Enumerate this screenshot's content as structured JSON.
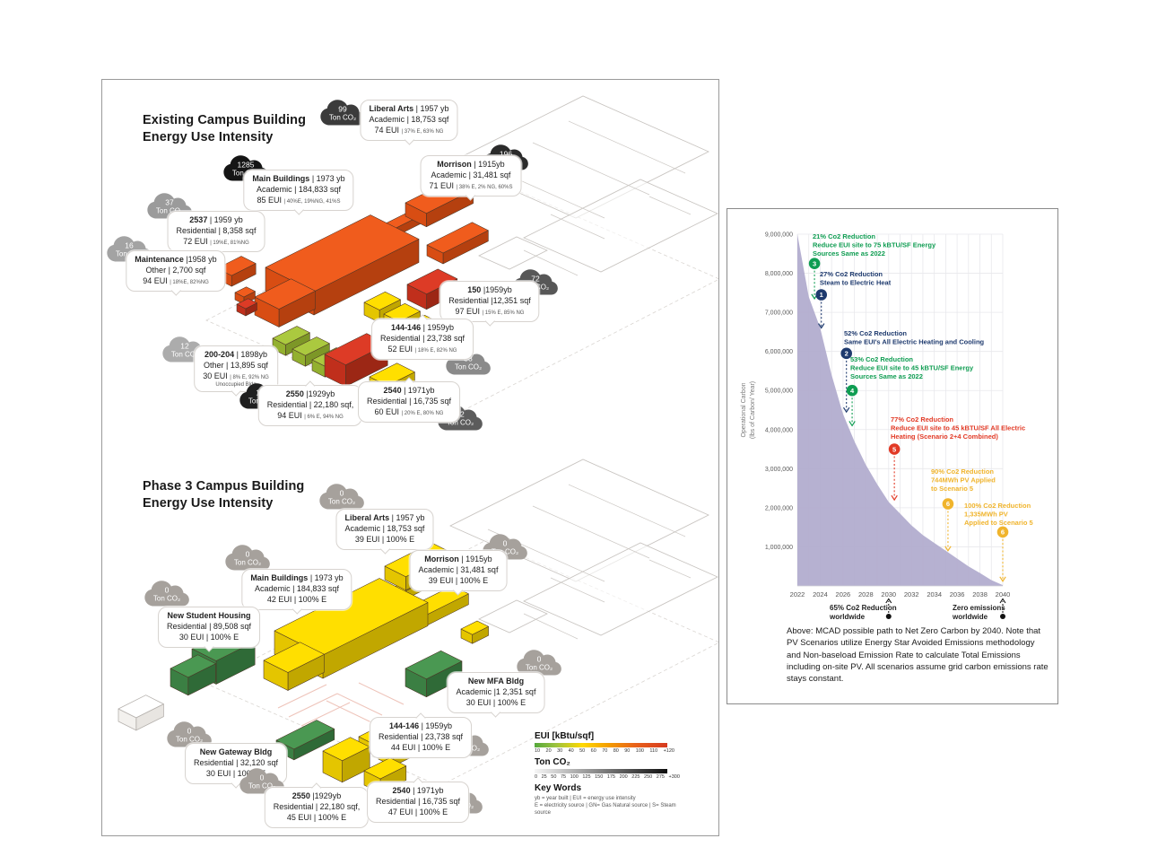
{
  "left_panel": {
    "existing": {
      "title_line1": "Existing Campus Building",
      "title_line2": "Energy Use Intensity",
      "buildings": [
        {
          "name": "Liberal Arts",
          "rest": " | 1957 yb",
          "l2": "Academic | 18,753 sqf",
          "l3": "74 EUI ",
          "l3s": "| 37% E, 63% NG",
          "cloud_value": "99",
          "cloud_label": "Ton CO₂"
        },
        {
          "name": "Main Buildings",
          "rest": " | 1973 yb",
          "l2": "Academic | 184,833 sqf",
          "l3": "85 EUI ",
          "l3s": "| 40%E, 19%NG, 41%S",
          "cloud_value": "1285",
          "cloud_label": "Ton CO₂"
        },
        {
          "name": "Morrison",
          "rest": " | 1915yb",
          "l2": "Academic | 31,481 sqf",
          "l3": "71 EUI ",
          "l3s": "| 38% E, 2% NG, 60%S",
          "cloud_value": "196",
          "cloud_label": "Ton CO₂"
        },
        {
          "name": "2537",
          "rest": " | 1959 yb",
          "l2": "Residential | 8,358 sqf",
          "l3": "72 EUI ",
          "l3s": "| 19%E, 81%NG",
          "cloud_value": "37",
          "cloud_label": "Ton CO₂"
        },
        {
          "name": "Maintenance",
          "rest": " |1958 yb",
          "l2": "Other | 2,700 sqf",
          "l3": "94 EUI ",
          "l3s": "| 18%E, 82%NG",
          "cloud_value": "16",
          "cloud_label": "Ton CO₂"
        },
        {
          "name": "150",
          "rest": " |1959yb",
          "l2": "Residential |12,351 sqf",
          "l3": "97 EUI ",
          "l3s": "| 15% E, 85% NG",
          "cloud_value": "72",
          "cloud_label": "Ton CO₂"
        },
        {
          "name": "144-146",
          "rest": " | 1959yb",
          "l2": "Residential | 23,738 sqf",
          "l3": "52 EUI ",
          "l3s": "| 18% E, 82% NG",
          "cloud_value": "38",
          "cloud_label": "Ton CO₂"
        },
        {
          "name": "200-204",
          "rest": " | 1898yb",
          "l2": "Other | 13,895 sqf",
          "l3": "30 EUI ",
          "l3s": "| 8% E, 92% NG",
          "extra": "Unoccupied Bldg",
          "cloud_value": "12",
          "cloud_label": "Ton CO₂"
        },
        {
          "name": "2550",
          "rest": " |1929yb",
          "l2": "Residential | 22,180 sqf,",
          "l3": "94 EUI ",
          "l3s": "| 6% E, 94% NG",
          "cloud_value": "117",
          "cloud_label": "Ton CO₂"
        },
        {
          "name": "2540",
          "rest": " | 1971yb",
          "l2": "Residential | 16,735 sqf",
          "l3": "60 EUI ",
          "l3s": "| 20% E, 80% NG",
          "cloud_value": "62",
          "cloud_label": "Ton CO₂"
        }
      ]
    },
    "phase3": {
      "title_line1": "Phase 3 Campus Building",
      "title_line2": "Energy Use Intensity",
      "buildings": [
        {
          "name": "Liberal Arts",
          "rest": " | 1957 yb",
          "l2": "Academic | 18,753 sqf",
          "l3": "39 EUI | 100% E",
          "l3s": "",
          "cloud_value": "0",
          "cloud_label": "Ton CO₂"
        },
        {
          "name": "Main Buildings",
          "rest": " | 1973 yb",
          "l2": "Academic | 184,833 sqf",
          "l3": "42 EUI | 100% E",
          "l3s": "",
          "cloud_value": "0",
          "cloud_label": "Ton CO₂"
        },
        {
          "name": "Morrison",
          "rest": " | 1915yb",
          "l2": "Academic | 31,481 sqf",
          "l3": "39 EUI | 100% E",
          "l3s": "",
          "cloud_value": "0",
          "cloud_label": "Ton CO₂"
        },
        {
          "name": "New Student Housing",
          "rest": "",
          "l2": "Residential | 89,508 sqf",
          "l3": "30 EUI | 100% E",
          "l3s": "",
          "cloud_value": "0",
          "cloud_label": "Ton CO₂"
        },
        {
          "name": "New MFA Bldg",
          "rest": "",
          "l2": "Academic |1 2,351 sqf",
          "l3": "30 EUI | 100% E",
          "l3s": "",
          "cloud_value": "0",
          "cloud_label": "Ton CO₂"
        },
        {
          "name": "144-146",
          "rest": " | 1959yb",
          "l2": "Residential | 23,738 sqf",
          "l3": "44 EUI | 100% E",
          "l3s": "",
          "cloud_value": "0",
          "cloud_label": "Ton CO₂"
        },
        {
          "name": "New Gateway Bldg",
          "rest": "",
          "l2": "Residential | 32,120 sqf",
          "l3": "30 EUI | 100% E",
          "l3s": "",
          "cloud_value": "0",
          "cloud_label": "Ton CO₂"
        },
        {
          "name": "2550",
          "rest": " |1929yb",
          "l2": "Residential | 22,180 sqf,",
          "l3": "45 EUI | 100% E",
          "l3s": "",
          "cloud_value": "0",
          "cloud_label": "Ton CO₂"
        },
        {
          "name": "2540",
          "rest": " | 1971yb",
          "l2": "Residential | 16,735 sqf",
          "l3": "47 EUI | 100% E",
          "l3s": "",
          "cloud_value": "0",
          "cloud_label": "Ton CO₂"
        }
      ]
    },
    "legend": {
      "eui_title": "EUI [kBtu/sqf]",
      "eui_ticks": [
        "10",
        "20",
        "30",
        "40",
        "50",
        "60",
        "70",
        "80",
        "90",
        "100",
        "110",
        "+120"
      ],
      "ton_title": "Ton CO₂",
      "ton_ticks": [
        "0",
        "25",
        "50",
        "75",
        "100",
        "125",
        "150",
        "175",
        "200",
        "225",
        "250",
        "275",
        "+300"
      ],
      "keywords_title": "Key Words",
      "keywords_line1": "yb = year built | EUI = energy use intensity",
      "keywords_line2": "E = electricity source  | GN= Gas Natural source  | S= Steam source"
    }
  },
  "chart_data": {
    "type": "area",
    "title": "",
    "xlabel": "",
    "ylabel_line1": "Operational Carbon",
    "ylabel_line2": "(lbs of Carbon/ Year)",
    "ylim": [
      0,
      9000000
    ],
    "grid": true,
    "area_color": "#b0aacd",
    "x": [
      2022,
      2023,
      2024,
      2025,
      2026,
      2027,
      2028,
      2029,
      2030,
      2031,
      2032,
      2033,
      2034,
      2035,
      2036,
      2037,
      2038,
      2039,
      2040
    ],
    "values": [
      9000000,
      7400000,
      6600000,
      5400000,
      4400000,
      3700000,
      3100000,
      2600000,
      2150000,
      1850000,
      1550000,
      1300000,
      1100000,
      900000,
      700000,
      500000,
      330000,
      150000,
      20000
    ],
    "x_tick_labels": [
      "2022",
      "2024",
      "2026",
      "2028",
      "2030",
      "2032",
      "2034",
      "2036",
      "2038",
      "2040"
    ],
    "y_tick_labels": [
      "1,000,000",
      "2,000,000",
      "3,000,000",
      "4,000,000",
      "5,000,000",
      "6,000,000",
      "7,000,000",
      "8,000,000",
      "9,000,000"
    ],
    "annotations": [
      {
        "num": "3",
        "color": "#0f9d52",
        "lines": [
          "21% Co2 Reduction",
          "Reduce EUI site to 75 kBTU/SF Energy",
          "Sources Same as 2022"
        ],
        "year": 2023.5,
        "value": 8250000,
        "tip_value": 7350000
      },
      {
        "num": "1",
        "color": "#1e3a6e",
        "lines": [
          "27% Co2 Reduction",
          "Steam to Electric Heat"
        ],
        "year": 2024.1,
        "value": 7450000,
        "tip_value": 6600000
      },
      {
        "num": "2",
        "color": "#1e3a6e",
        "lines": [
          "52% Co2 Reduction",
          "Same EUI's All Electric Heating and Cooling"
        ],
        "year": 2026.3,
        "value": 5950000,
        "tip_value": 4450000
      },
      {
        "num": "4",
        "color": "#0f9d52",
        "lines": [
          "53% Co2 Reduction",
          "Reduce EUI site to 45 kBTU/SF Energy",
          "Sources Same as 2022"
        ],
        "year": 2026.8,
        "value": 5000000,
        "tip_value": 4100000
      },
      {
        "num": "5",
        "color": "#e23a26",
        "lines": [
          "77% Co2 Reduction",
          "Reduce EUI site to 45 kBTU/SF All Electric",
          "Heating (Scenario 2+4 Combined)"
        ],
        "year": 2030.5,
        "value": 3500000,
        "tip_value": 2200000
      },
      {
        "num": "6",
        "color": "#f0b42c",
        "lines": [
          "90% Co2 Reduction",
          "744MWh PV Applied",
          "to Scenario 5"
        ],
        "year": 2035.2,
        "value": 2100000,
        "tip_value": 900000
      },
      {
        "num": "6",
        "color": "#f0b42c",
        "lines": [
          "100% Co2 Reduction",
          "1,335MWh PV",
          "Applied to Scenario 5"
        ],
        "year": 2040,
        "value": 1380000,
        "tip_value": 120000
      }
    ],
    "below_axis": [
      {
        "lines": [
          "65% Co2 Reduction",
          "worldwide"
        ],
        "year": 2030
      },
      {
        "lines": [
          "Zero emissions",
          "worldwide"
        ],
        "year": 2040
      }
    ],
    "caption": "Above: MCAD possible path to Net Zero Carbon by 2040. Note that PV Scenarios utilize Energy Star Avoided Emissions methodology and Non-baseload Emission Rate to calculate Total Emissions including on-site PV. All scenarios assume grid carbon emissions rate stays constant."
  }
}
